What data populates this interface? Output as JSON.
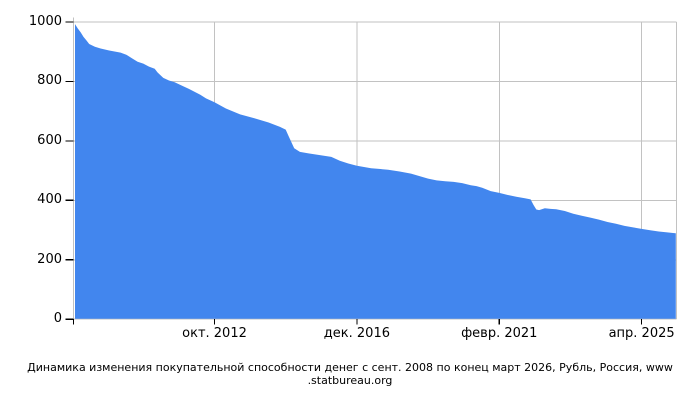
{
  "chart_data": {
    "type": "area",
    "title_line1": "Динамика изменения покупательной способности денег с сент. 2008 по конец март 2026, Рубль, Россия, www",
    "title_line2": ".statbureau.org",
    "ylim": [
      0,
      1000
    ],
    "y_ticks": [
      0,
      200,
      400,
      600,
      800,
      1000
    ],
    "x_unit": "months since 2008-09",
    "xlim_months": [
      0,
      211
    ],
    "x_ticks": [
      {
        "label": "окт. 2012",
        "month": 49
      },
      {
        "label": "дек. 2016",
        "month": 99
      },
      {
        "label": "февр. 2021",
        "month": 149
      },
      {
        "label": "апр. 2025",
        "month": 199
      }
    ],
    "grid": true,
    "legend_position": "none",
    "area_color": "#4286ee",
    "grid_color": "#c2c2c2",
    "tick_color": "#000000",
    "text_color": "#000000",
    "points": [
      [
        0,
        993
      ],
      [
        1,
        978
      ],
      [
        2,
        965
      ],
      [
        3,
        950
      ],
      [
        4,
        938
      ],
      [
        5,
        926
      ],
      [
        7,
        917
      ],
      [
        9,
        911
      ],
      [
        12,
        904
      ],
      [
        16,
        897
      ],
      [
        18,
        890
      ],
      [
        20,
        878
      ],
      [
        22,
        866
      ],
      [
        24,
        860
      ],
      [
        26,
        850
      ],
      [
        28,
        843
      ],
      [
        29,
        830
      ],
      [
        31,
        812
      ],
      [
        33,
        803
      ],
      [
        35,
        797
      ],
      [
        38,
        784
      ],
      [
        40,
        775
      ],
      [
        44,
        755
      ],
      [
        46,
        743
      ],
      [
        49,
        730
      ],
      [
        53,
        709
      ],
      [
        58,
        689
      ],
      [
        63,
        676
      ],
      [
        68,
        662
      ],
      [
        72,
        647
      ],
      [
        74,
        638
      ],
      [
        75,
        616
      ],
      [
        77,
        575
      ],
      [
        79,
        563
      ],
      [
        82,
        558
      ],
      [
        86,
        552
      ],
      [
        90,
        546
      ],
      [
        93,
        533
      ],
      [
        96,
        524
      ],
      [
        99,
        516
      ],
      [
        104,
        508
      ],
      [
        110,
        503
      ],
      [
        114,
        497
      ],
      [
        118,
        490
      ],
      [
        124,
        473
      ],
      [
        127,
        467
      ],
      [
        130,
        464
      ],
      [
        133,
        462
      ],
      [
        136,
        458
      ],
      [
        139,
        451
      ],
      [
        141,
        448
      ],
      [
        143,
        442
      ],
      [
        146,
        431
      ],
      [
        149,
        425
      ],
      [
        152,
        418
      ],
      [
        155,
        412
      ],
      [
        158,
        407
      ],
      [
        160,
        403
      ],
      [
        161,
        385
      ],
      [
        162,
        369
      ],
      [
        163,
        367
      ],
      [
        165,
        373
      ],
      [
        167,
        371
      ],
      [
        169,
        370
      ],
      [
        172,
        364
      ],
      [
        175,
        355
      ],
      [
        178,
        348
      ],
      [
        181,
        342
      ],
      [
        184,
        335
      ],
      [
        187,
        327
      ],
      [
        190,
        321
      ],
      [
        193,
        314
      ],
      [
        196,
        309
      ],
      [
        199,
        304
      ],
      [
        202,
        299
      ],
      [
        205,
        295
      ],
      [
        208,
        292
      ],
      [
        210,
        290
      ],
      [
        211,
        289
      ]
    ]
  }
}
